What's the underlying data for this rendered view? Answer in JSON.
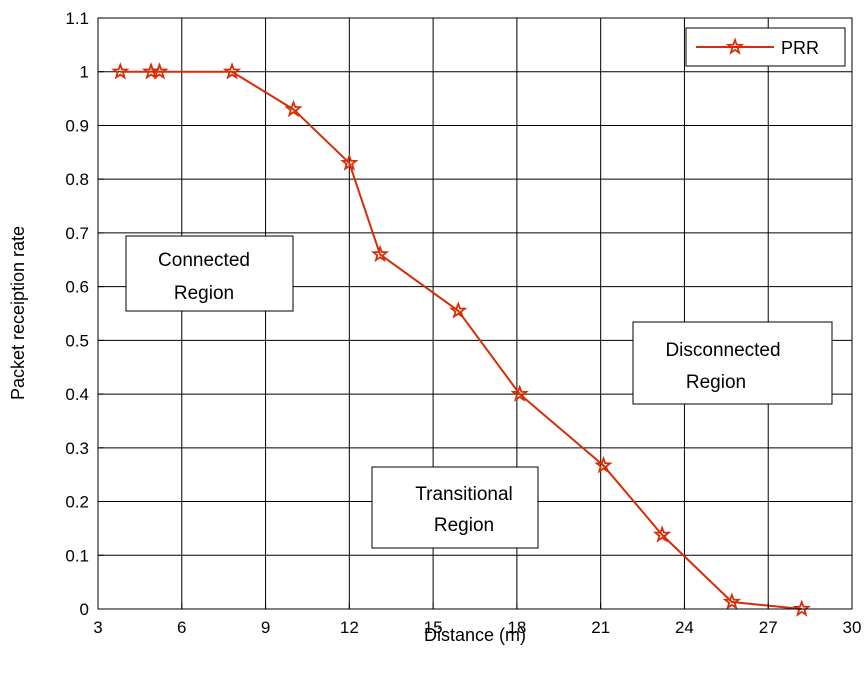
{
  "chart_data": {
    "type": "line",
    "title": "",
    "xlabel": "Distance (m)",
    "ylabel": "Packet receiption rate",
    "xlim": [
      3,
      30
    ],
    "ylim": [
      0,
      1.1
    ],
    "xticks": [
      3,
      6,
      9,
      12,
      15,
      18,
      21,
      24,
      27,
      30
    ],
    "xtick_labels": [
      "3",
      "6",
      "9",
      "12",
      "15",
      "18",
      "21",
      "24",
      "27",
      "30"
    ],
    "yticks": [
      0,
      0.1,
      0.2,
      0.3,
      0.4,
      0.5,
      0.6,
      0.7,
      0.8,
      0.9,
      1,
      1.1
    ],
    "ytick_labels": [
      "0",
      "0.1",
      "0.2",
      "0.3",
      "0.4",
      "0.5",
      "0.6",
      "0.7",
      "0.8",
      "0.9",
      "1",
      "1.1"
    ],
    "grid": true,
    "legend_position": "top-right",
    "series": [
      {
        "name": "PRR",
        "color": "#d62d06",
        "marker": "star",
        "x": [
          3.8,
          4.9,
          5.2,
          7.8,
          10.0,
          12.0,
          13.1,
          15.9,
          18.1,
          21.1,
          23.2,
          25.7,
          28.2
        ],
        "y": [
          1.0,
          1.0,
          1.0,
          1.0,
          0.93,
          0.83,
          0.66,
          0.555,
          0.4,
          0.267,
          0.138,
          0.013,
          0.0
        ]
      }
    ],
    "annotations": [
      {
        "lines": [
          "Connected",
          "Region"
        ]
      },
      {
        "lines": [
          "Transitional",
          "Region"
        ]
      },
      {
        "lines": [
          "Disconnected",
          "Region"
        ]
      }
    ]
  }
}
